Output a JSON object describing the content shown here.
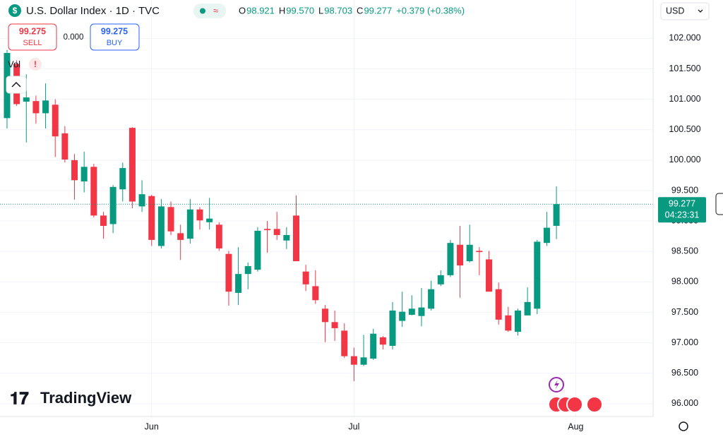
{
  "chart_data": {
    "type": "candlestick",
    "title": "U.S. Dollar Index · 1D · TVC",
    "quote": [
      {
        "key": "O",
        "value": "98.921"
      },
      {
        "key": "H",
        "value": "99.570"
      },
      {
        "key": "L",
        "value": "98.703"
      },
      {
        "key": "C",
        "value": "99.277"
      },
      {
        "key": "",
        "value": "+0.379 (+0.38%)"
      }
    ],
    "sell": {
      "price": "99.275",
      "label": "SELL"
    },
    "spread": "0.000",
    "buy": {
      "price": "99.275",
      "label": "BUY"
    },
    "volume_label": "Vol",
    "volume_warning": "!",
    "currency": "USD",
    "countdown": "04:23:31",
    "logo": "TradingView",
    "up_color": "#089981",
    "down_color": "#f23645",
    "grid": true,
    "open": [
      100.69,
      101.58,
      100.96,
      100.97,
      100.77,
      100.91,
      100.44,
      100.0,
      99.65,
      99.89,
      99.09,
      98.95,
      99.52,
      100.53,
      99.24,
      99.41,
      98.59,
      99.23,
      98.8,
      98.71,
      99.19,
      98.98,
      98.94,
      98.46,
      97.82,
      98.13,
      98.2,
      98.87,
      98.87,
      98.68,
      99.09,
      98.17,
      97.93,
      97.56,
      97.34,
      97.2,
      96.78,
      96.64,
      96.74,
      97.09,
      96.95,
      97.36,
      97.46,
      97.44,
      97.56,
      97.96,
      98.11,
      98.61,
      98.34,
      98.51,
      98.37,
      97.88,
      97.45,
      97.18,
      97.45,
      97.56,
      98.64,
      98.921
    ],
    "high": [
      101.81,
      101.64,
      101.41,
      101.06,
      101.26,
      101.0,
      100.56,
      100.1,
      100.14,
      99.94,
      99.15,
      99.59,
      99.96,
      100.54,
      99.67,
      99.43,
      99.36,
      99.32,
      98.94,
      99.36,
      99.23,
      99.38,
      98.98,
      98.51,
      98.57,
      98.32,
      98.9,
      99.0,
      99.15,
      98.9,
      99.42,
      98.28,
      98.19,
      97.62,
      97.53,
      97.32,
      96.92,
      97.13,
      97.23,
      97.11,
      97.67,
      97.84,
      97.78,
      97.9,
      98.02,
      98.19,
      98.69,
      98.92,
      98.94,
      98.57,
      98.51,
      97.99,
      97.59,
      97.56,
      97.91,
      98.69,
      99.15,
      99.57
    ],
    "low": [
      100.52,
      100.89,
      100.29,
      100.6,
      100.52,
      100.05,
      99.96,
      99.35,
      99.47,
      99.06,
      98.71,
      98.8,
      99.32,
      99.21,
      99.15,
      98.59,
      98.55,
      98.77,
      98.36,
      98.63,
      98.86,
      98.86,
      98.51,
      97.61,
      97.62,
      97.88,
      98.17,
      98.48,
      98.69,
      98.54,
      98.34,
      97.85,
      97.64,
      97.01,
      97.03,
      96.75,
      96.37,
      96.62,
      96.72,
      96.89,
      96.89,
      97.26,
      97.45,
      97.27,
      97.53,
      97.93,
      98.08,
      97.74,
      98.32,
      98.11,
      97.84,
      97.3,
      97.18,
      97.12,
      97.45,
      97.47,
      98.59,
      98.703
    ],
    "close": [
      101.76,
      100.92,
      101.03,
      100.77,
      100.98,
      100.39,
      100.01,
      99.67,
      99.89,
      99.09,
      98.92,
      99.56,
      99.87,
      99.32,
      99.44,
      98.69,
      99.24,
      98.83,
      98.69,
      99.19,
      99.01,
      99.04,
      98.55,
      97.84,
      98.13,
      98.26,
      98.84,
      98.85,
      98.77,
      98.77,
      98.34,
      97.96,
      97.7,
      97.34,
      97.24,
      96.78,
      96.64,
      96.76,
      97.15,
      96.97,
      97.53,
      97.51,
      97.56,
      97.58,
      97.88,
      98.11,
      98.64,
      98.27,
      98.61,
      98.49,
      97.84,
      97.38,
      97.2,
      97.53,
      97.67,
      98.66,
      98.89,
      99.277
    ],
    "xlim": [
      -0.73,
      67.03
    ],
    "xticks": [
      {
        "value": 15,
        "label": "Jun"
      },
      {
        "value": 36,
        "label": "Jul"
      },
      {
        "value": 59,
        "label": "Aug"
      }
    ],
    "ylim": [
      95.79,
      102.63
    ],
    "yticks": [
      {
        "value": 96,
        "label": "96.000"
      },
      {
        "value": 96.5,
        "label": "96.500"
      },
      {
        "value": 97,
        "label": "97.000"
      },
      {
        "value": 97.5,
        "label": "97.500"
      },
      {
        "value": 98,
        "label": "98.000"
      },
      {
        "value": 98.5,
        "label": "98.500"
      },
      {
        "value": 99,
        "label": "99.000"
      },
      {
        "value": 99.5,
        "label": "99.500"
      },
      {
        "value": 100,
        "label": "100.000"
      },
      {
        "value": 100.5,
        "label": "100.500"
      },
      {
        "value": 101,
        "label": "101.000"
      },
      {
        "value": 101.5,
        "label": "101.500"
      },
      {
        "value": 102,
        "label": "102.000"
      }
    ]
  }
}
